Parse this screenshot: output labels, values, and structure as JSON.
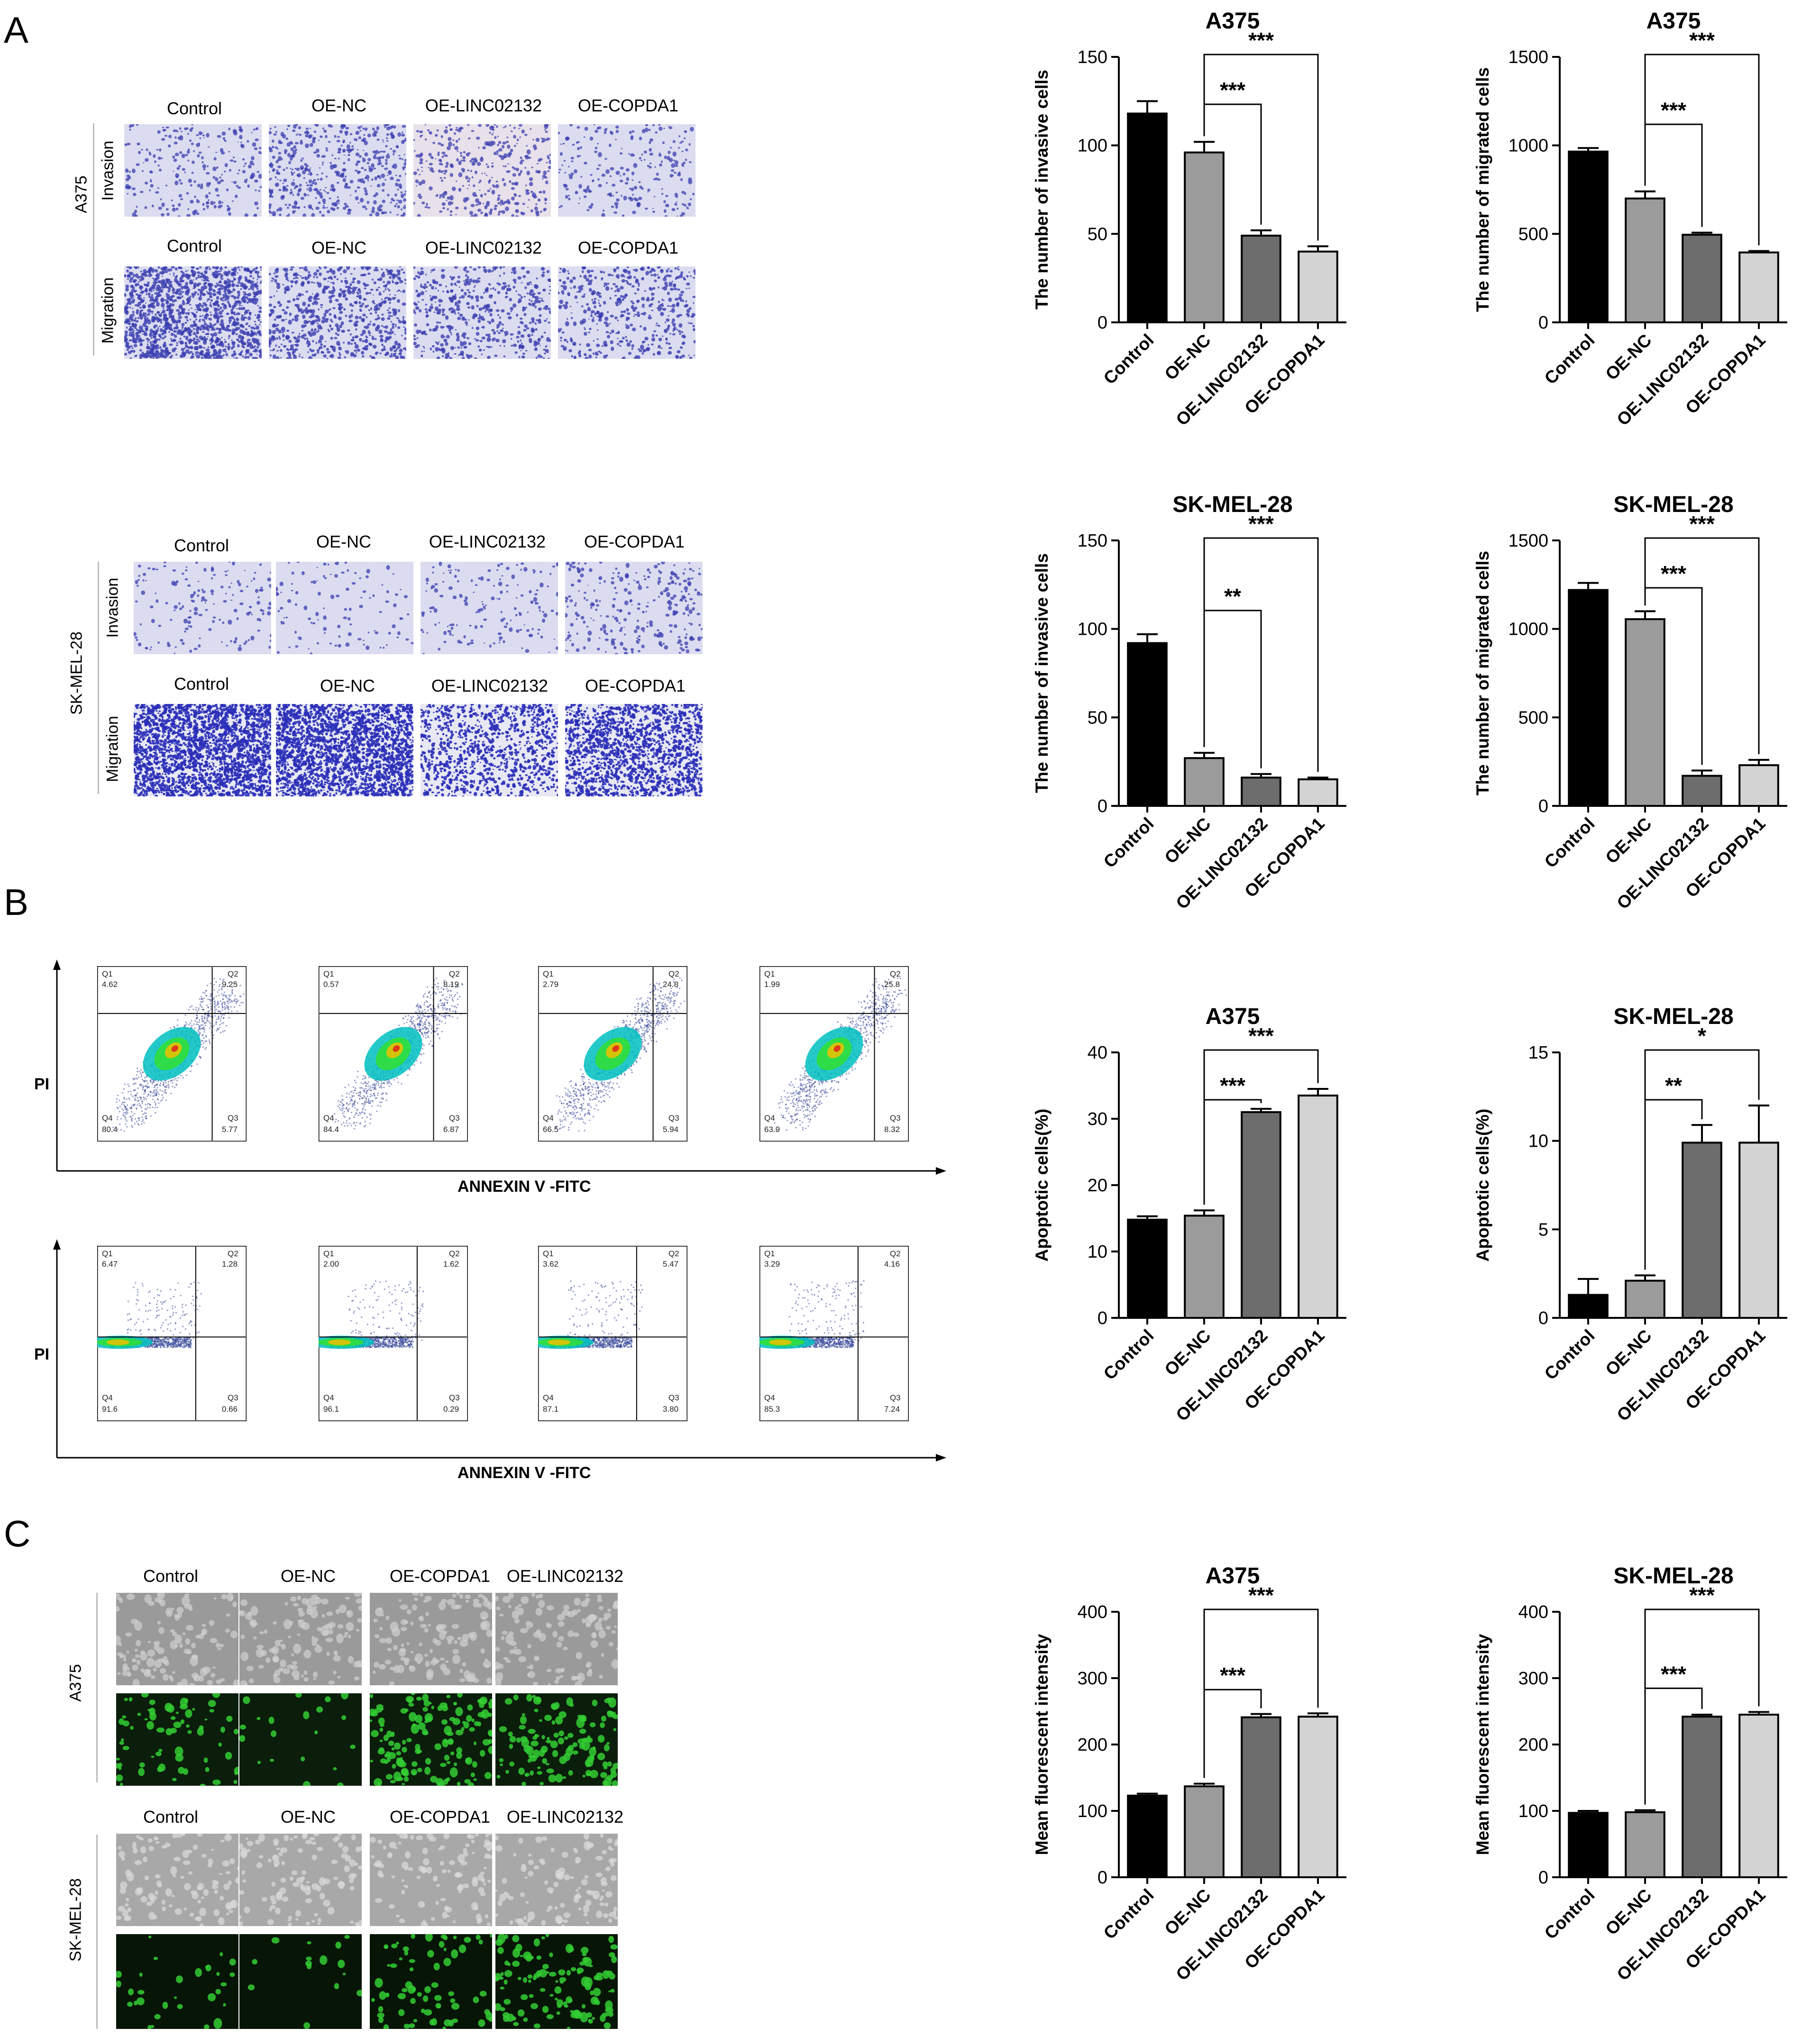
{
  "panel_letters": [
    "A",
    "B",
    "C"
  ],
  "panelA": {
    "groups": [
      "Control",
      "OE-NC",
      "OE-LINC02132",
      "OE-COPDA1"
    ],
    "row_invasion": "Invasion",
    "row_migration": "Migration",
    "cell_a375": "A375",
    "cell_skmel": "SK-MEL-28"
  },
  "panelB": {
    "axis_y": "PI",
    "axis_x": "ANNEXIN V -FITC",
    "top_plots": [
      {
        "q1": "4.62",
        "q2": "9.25",
        "q3": "5.77",
        "q4": "80.4"
      },
      {
        "q1": "0.57",
        "q2": "8.19",
        "q3": "6.87",
        "q4": "84.4"
      },
      {
        "q1": "2.79",
        "q2": "24.8",
        "q3": "5.94",
        "q4": "66.5"
      },
      {
        "q1": "1.99",
        "q2": "25.8",
        "q3": "8.32",
        "q4": "63.9"
      }
    ],
    "bottom_plots": [
      {
        "q1": "6.47",
        "q2": "1.28",
        "q3": "0.66",
        "q4": "91.6"
      },
      {
        "q1": "2.00",
        "q2": "1.62",
        "q3": "0.29",
        "q4": "96.1"
      },
      {
        "q1": "3.62",
        "q2": "5.47",
        "q3": "3.80",
        "q4": "87.1"
      },
      {
        "q1": "3.29",
        "q2": "4.16",
        "q3": "7.24",
        "q4": "85.3"
      }
    ],
    "quadrant_names": [
      "Q1",
      "Q2",
      "Q3",
      "Q4"
    ]
  },
  "panelC": {
    "groups": [
      "Control",
      "OE-NC",
      "OE-COPDA1",
      "OE-LINC02132"
    ],
    "cell_a375": "A375",
    "cell_skmel": "SK-MEL-28"
  },
  "colors": {
    "bar1": "#000000",
    "bar2": "#9b9b9b",
    "bar3": "#6d6d6d",
    "bar4": "#d3d3d3",
    "stain": "#3b3fb0",
    "membrane": "#dcdcf0",
    "fluor": "#33cc33"
  },
  "chart_data": [
    {
      "type": "bar",
      "title": "A375",
      "ylabel": "The number of invasive cells",
      "categories": [
        "Control",
        "OE-NC",
        "OE-LINC02132",
        "OE-COPDA1"
      ],
      "values": [
        118,
        96,
        49,
        40
      ],
      "errors": [
        7,
        6,
        3,
        3
      ],
      "ylim": [
        0,
        150
      ],
      "yticks": [
        0,
        50,
        100,
        150
      ],
      "brackets": [
        {
          "from": 1,
          "to": 2,
          "label": "***"
        },
        {
          "from": 1,
          "to": 3,
          "label": "***"
        }
      ]
    },
    {
      "type": "bar",
      "title": "A375",
      "ylabel": "The number of migrated cells",
      "categories": [
        "Control",
        "OE-NC",
        "OE-LINC02132",
        "OE-COPDA1"
      ],
      "values": [
        965,
        700,
        495,
        395
      ],
      "errors": [
        20,
        40,
        12,
        8
      ],
      "ylim": [
        0,
        1500
      ],
      "yticks": [
        0,
        500,
        1000,
        1500
      ],
      "brackets": [
        {
          "from": 1,
          "to": 2,
          "label": "***"
        },
        {
          "from": 1,
          "to": 3,
          "label": "***"
        }
      ]
    },
    {
      "type": "bar",
      "title": "SK-MEL-28",
      "ylabel": "The number of invasive cells",
      "categories": [
        "Control",
        "OE-NC",
        "OE-LINC02132",
        "OE-COPDA1"
      ],
      "values": [
        92,
        27,
        16,
        15
      ],
      "errors": [
        5,
        3,
        2,
        1
      ],
      "ylim": [
        0,
        150
      ],
      "yticks": [
        0,
        50,
        100,
        150
      ],
      "brackets": [
        {
          "from": 1,
          "to": 2,
          "label": "**"
        },
        {
          "from": 1,
          "to": 3,
          "label": "***"
        }
      ]
    },
    {
      "type": "bar",
      "title": "SK-MEL-28",
      "ylabel": "The number of migrated cells",
      "categories": [
        "Control",
        "OE-NC",
        "OE-LINC02132",
        "OE-COPDA1"
      ],
      "values": [
        1220,
        1055,
        170,
        230
      ],
      "errors": [
        40,
        45,
        30,
        30
      ],
      "ylim": [
        0,
        1500
      ],
      "yticks": [
        0,
        500,
        1000,
        1500
      ],
      "brackets": [
        {
          "from": 1,
          "to": 2,
          "label": "***"
        },
        {
          "from": 1,
          "to": 3,
          "label": "***"
        }
      ]
    },
    {
      "type": "bar",
      "title": "A375",
      "ylabel": "Apoptotic cells(%)",
      "categories": [
        "Control",
        "OE-NC",
        "OE-LINC02132",
        "OE-COPDA1"
      ],
      "values": [
        14.8,
        15.4,
        31,
        33.5
      ],
      "errors": [
        0.5,
        0.8,
        0.5,
        1
      ],
      "ylim": [
        0,
        40
      ],
      "yticks": [
        0,
        10,
        20,
        30,
        40
      ],
      "brackets": [
        {
          "from": 1,
          "to": 2,
          "label": "***"
        },
        {
          "from": 1,
          "to": 3,
          "label": "***"
        }
      ]
    },
    {
      "type": "bar",
      "title": "SK-MEL-28",
      "ylabel": "Apoptotic cells(%)",
      "categories": [
        "Control",
        "OE-NC",
        "OE-LINC02132",
        "OE-COPDA1"
      ],
      "values": [
        1.3,
        2.1,
        9.9,
        9.9
      ],
      "errors": [
        0.9,
        0.3,
        1.0,
        2.1
      ],
      "ylim": [
        0,
        15
      ],
      "yticks": [
        0,
        5,
        10,
        15
      ],
      "brackets": [
        {
          "from": 1,
          "to": 2,
          "label": "**"
        },
        {
          "from": 1,
          "to": 3,
          "label": "*"
        }
      ]
    },
    {
      "type": "bar",
      "title": "A375",
      "ylabel": "Mean fluorescent intensity",
      "categories": [
        "Control",
        "OE-NC",
        "OE-LINC02132",
        "OE-COPDA1"
      ],
      "values": [
        123,
        137,
        241,
        242
      ],
      "errors": [
        3,
        4,
        5,
        5
      ],
      "ylim": [
        0,
        400
      ],
      "yticks": [
        0,
        100,
        200,
        300,
        400
      ],
      "brackets": [
        {
          "from": 1,
          "to": 2,
          "label": "***"
        },
        {
          "from": 1,
          "to": 3,
          "label": "***"
        }
      ]
    },
    {
      "type": "bar",
      "title": "SK-MEL-28",
      "ylabel": "Mean fluorescent intensity",
      "categories": [
        "Control",
        "OE-NC",
        "OE-LINC02132",
        "OE-COPDA1"
      ],
      "values": [
        97,
        98,
        242,
        245
      ],
      "errors": [
        3,
        3,
        3,
        4
      ],
      "ylim": [
        0,
        400
      ],
      "yticks": [
        0,
        100,
        200,
        300,
        400
      ],
      "brackets": [
        {
          "from": 1,
          "to": 2,
          "label": "***"
        },
        {
          "from": 1,
          "to": 3,
          "label": "***"
        }
      ]
    }
  ]
}
